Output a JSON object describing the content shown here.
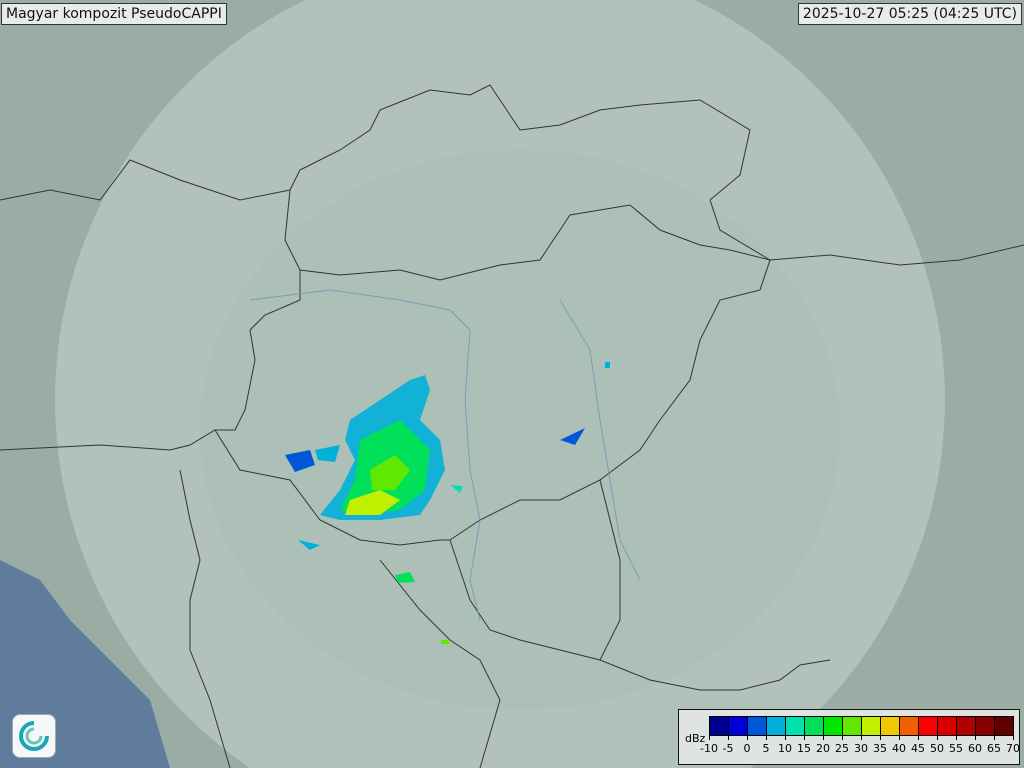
{
  "title": "Magyar kompozit  PseudoCAPPI",
  "timestamp": "2025-10-27 05:25 (04:25 UTC)",
  "legend": {
    "unit": "dBz",
    "ticks": [
      "-10",
      "-5",
      "0",
      "5",
      "10",
      "15",
      "20",
      "25",
      "30",
      "35",
      "40",
      "45",
      "50",
      "55",
      "60",
      "65",
      "70"
    ],
    "colors": [
      "#000090",
      "#0000d8",
      "#0058d8",
      "#00b0d8",
      "#00e0b0",
      "#00e058",
      "#00e800",
      "#60e800",
      "#c0f000",
      "#f0c800",
      "#f06000",
      "#ff0000",
      "#d80000",
      "#b00000",
      "#880000",
      "#600000"
    ]
  },
  "logo": {
    "icon": "met-service-swirl-logo"
  }
}
